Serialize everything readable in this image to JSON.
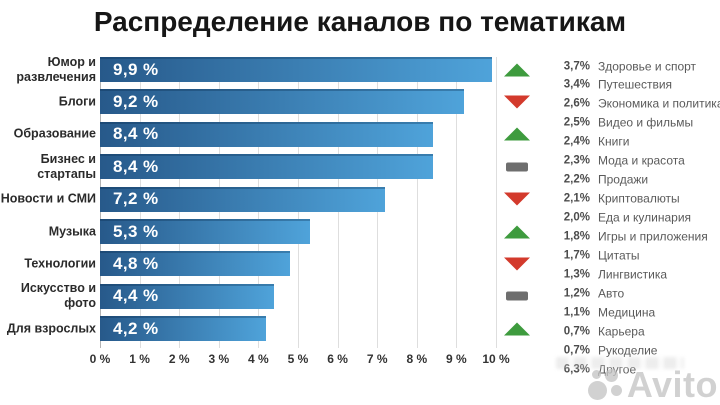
{
  "title": "Распределение каналов по тематикам",
  "chart_data": {
    "type": "bar",
    "orientation": "horizontal",
    "title": "Распределение каналов по тематикам",
    "unit": "%",
    "xlim": [
      0,
      10.5
    ],
    "grid": true,
    "x_tick_labels": [
      "0 %",
      "1 %",
      "2 %",
      "3 %",
      "4 %",
      "5 %",
      "6 %",
      "7 %",
      "8 %",
      "9 %",
      "10 %"
    ],
    "bars": [
      {
        "category": "Юмор и развлечения",
        "value": 9.9,
        "value_label": "9,9 %",
        "trend": "up"
      },
      {
        "category": "Блоги",
        "value": 9.2,
        "value_label": "9,2 %",
        "trend": "down"
      },
      {
        "category": "Образование",
        "value": 8.4,
        "value_label": "8,4 %",
        "trend": "up"
      },
      {
        "category": "Бизнес и стартапы",
        "value": 8.4,
        "value_label": "8,4 %",
        "trend": "flat"
      },
      {
        "category": "Новости и СМИ",
        "value": 7.2,
        "value_label": "7,2 %",
        "trend": "down"
      },
      {
        "category": "Музыка",
        "value": 5.3,
        "value_label": "5,3 %",
        "trend": "up"
      },
      {
        "category": "Технологии",
        "value": 4.8,
        "value_label": "4,8 %",
        "trend": "down"
      },
      {
        "category": "Искусство и фото",
        "value": 4.4,
        "value_label": "4,4 %",
        "trend": "flat"
      },
      {
        "category": "Для взрослых",
        "value": 4.2,
        "value_label": "4,2 %",
        "trend": "up"
      }
    ],
    "other_topics": [
      {
        "value_label": "3,7%",
        "label": "Здоровье и спорт"
      },
      {
        "value_label": "3,4%",
        "label": "Путешествия"
      },
      {
        "value_label": "2,6%",
        "label": "Экономика и политика"
      },
      {
        "value_label": "2,5%",
        "label": "Видео и фильмы"
      },
      {
        "value_label": "2,4%",
        "label": "Книги"
      },
      {
        "value_label": "2,3%",
        "label": "Мода и красота"
      },
      {
        "value_label": "2,2%",
        "label": "Продажи"
      },
      {
        "value_label": "2,1%",
        "label": "Криптовалюты"
      },
      {
        "value_label": "2,0%",
        "label": "Еда и кулинария"
      },
      {
        "value_label": "1,8%",
        "label": "Игры и приложения"
      },
      {
        "value_label": "1,7%",
        "label": "Цитаты"
      },
      {
        "value_label": "1,3%",
        "label": "Лингвистика"
      },
      {
        "value_label": "1,2%",
        "label": "Авто"
      },
      {
        "value_label": "1,1%",
        "label": "Медицина"
      },
      {
        "value_label": "0,7%",
        "label": "Карьера"
      },
      {
        "value_label": "0,7%",
        "label": "Рукоделие"
      },
      {
        "value_label": "6,3%",
        "label": "Другое"
      }
    ]
  },
  "colors": {
    "bar_gradient_start": "#27598a",
    "bar_gradient_end": "#4fa3da",
    "trend_up": "#3e9b3e",
    "trend_down": "#d33a2c",
    "trend_flat": "#6e6e6e",
    "grid": "#dedede",
    "axis_line": "#b3b3b3"
  },
  "watermark": {
    "text": "Avito"
  }
}
